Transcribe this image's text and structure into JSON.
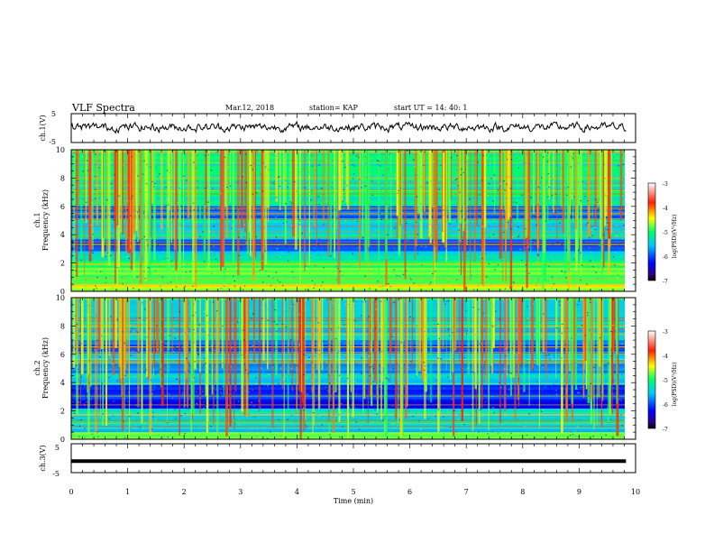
{
  "header": {
    "title": "VLF Spectra",
    "date": "Mar.12, 2018",
    "station": "station= KAP",
    "start": "start  UT =   14: 40: 1"
  },
  "chart_data": [
    {
      "type": "line",
      "id": "ch1-waveform",
      "ylabel": "ch.1(V)",
      "ylim": [
        -5,
        5
      ],
      "yticks": [
        "5",
        "-5"
      ],
      "x_range_min": [
        0,
        9.83
      ],
      "series": [
        {
          "values_description_free": true,
          "level": 0.3,
          "amplitude": 2.0
        }
      ]
    },
    {
      "type": "heatmap",
      "id": "ch1-spectrogram",
      "ylabel": "ch.1\nFrequency  (kHz)",
      "ylim": [
        0,
        10
      ],
      "yticks": [
        "0",
        "2",
        "4",
        "6",
        "8",
        "10"
      ],
      "colorbar": {
        "label": "log(PSD)(V²/Hz)",
        "ticks": [
          "-3",
          "-4",
          "-5",
          "-6",
          "-7"
        ],
        "range": [
          -7,
          -3
        ]
      }
    },
    {
      "type": "heatmap",
      "id": "ch2-spectrogram",
      "ylabel": "ch.2\nFrequency  (kHz)",
      "ylim": [
        0,
        10
      ],
      "yticks": [
        "0",
        "2",
        "4",
        "6",
        "8",
        "10"
      ],
      "colorbar": {
        "label": "log(PSD)(V²/Hz)",
        "ticks": [
          "-3",
          "-4",
          "-5",
          "-6",
          "-7"
        ],
        "range": [
          -7,
          -3
        ]
      }
    },
    {
      "type": "line",
      "id": "ch3-waveform",
      "ylabel": "ch.3(V)",
      "ylim": [
        -5,
        5
      ],
      "yticks": [
        "5",
        "-5"
      ],
      "series": [
        {
          "level": -1.0
        }
      ]
    }
  ],
  "xaxis": {
    "label": "Time  (min)",
    "ticks": [
      "0",
      "1",
      "2",
      "3",
      "4",
      "5",
      "6",
      "7",
      "8",
      "9",
      "10"
    ],
    "range": [
      0,
      10
    ],
    "data_end": 9.83
  }
}
